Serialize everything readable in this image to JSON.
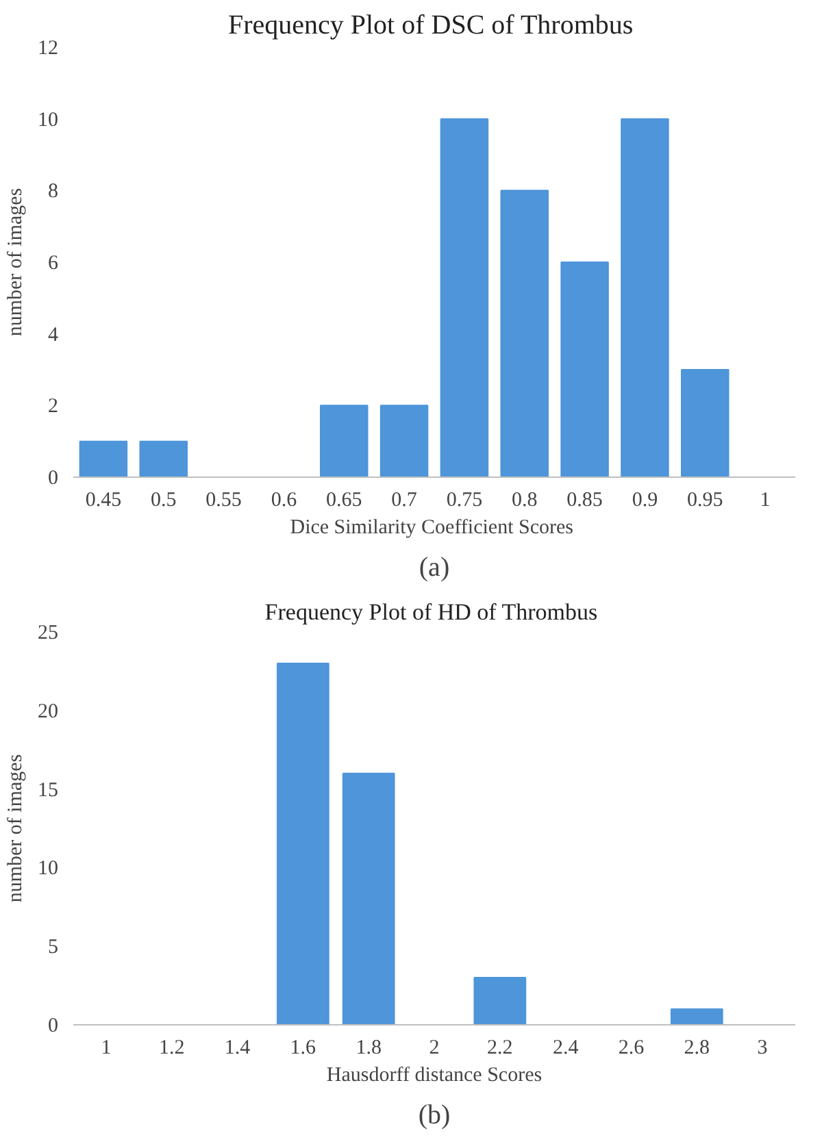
{
  "chart_data": [
    {
      "type": "bar",
      "title": "Frequency  Plot of DSC of Thrombus",
      "xlabel": "Dice Similarity  Coefficient Scores",
      "ylabel": "number of images",
      "categories": [
        "0.45",
        "0.5",
        "0.55",
        "0.6",
        "0.65",
        "0.7",
        "0.75",
        "0.8",
        "0.85",
        "0.9",
        "0.95",
        "1"
      ],
      "series": [
        {
          "color": "#4e95d9",
          "values": [
            1,
            1,
            0,
            0,
            2,
            2,
            10,
            8,
            6,
            10,
            3,
            0
          ]
        }
      ],
      "ylim": [
        0,
        12
      ],
      "yticks": [
        0,
        2,
        4,
        6,
        8,
        10,
        12
      ],
      "grid": false,
      "annotations": [
        "(a)"
      ]
    },
    {
      "type": "bar",
      "title": "Frequency  Plot of HD of Thrombus",
      "xlabel": "Hausdorff distance Scores",
      "ylabel": "number of images",
      "categories": [
        "1",
        "1.2",
        "1.4",
        "1.6",
        "1.8",
        "2",
        "2.2",
        "2.4",
        "2.6",
        "2.8",
        "3"
      ],
      "series": [
        {
          "color": "#4e95d9",
          "values": [
            0,
            0,
            0,
            23,
            16,
            0,
            3,
            0,
            0,
            1,
            0
          ]
        }
      ],
      "ylim": [
        0,
        25
      ],
      "yticks": [
        0,
        5,
        10,
        15,
        20,
        25
      ],
      "grid": false,
      "annotations": [
        "(b)"
      ]
    }
  ]
}
